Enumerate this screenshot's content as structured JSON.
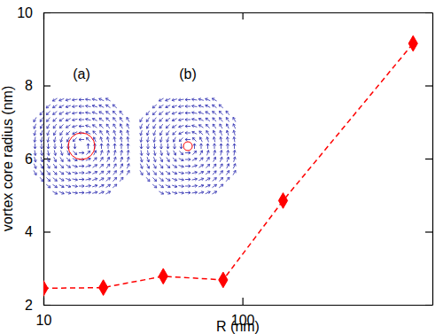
{
  "chart_data": {
    "type": "line",
    "x_label": "R (nm)",
    "y_label": "vortex core radius (nm)",
    "x": [
      10,
      20,
      40,
      80,
      160,
      720
    ],
    "values": [
      2.45,
      2.47,
      2.78,
      2.68,
      4.85,
      9.15
    ],
    "color": "#ff0000",
    "marker": "diamond",
    "line_style": "dashed",
    "log": "x",
    "grid": false,
    "xlim": [
      10,
      900
    ],
    "ylim": [
      2,
      10
    ],
    "xticks": [
      10,
      100
    ],
    "yticks": [
      2,
      4,
      6,
      8,
      10
    ],
    "annotations": [
      "(a)",
      "(b)"
    ]
  }
}
